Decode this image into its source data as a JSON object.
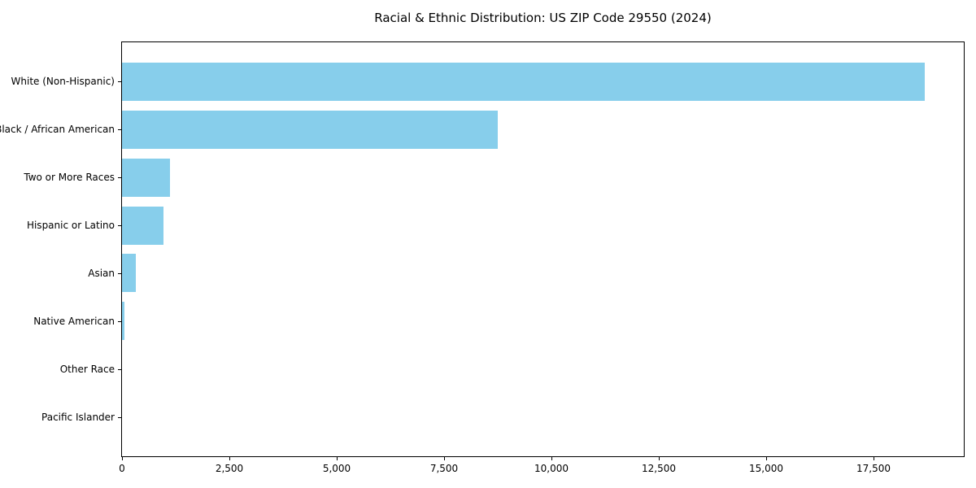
{
  "chart_data": {
    "type": "bar",
    "orientation": "horizontal",
    "title": "Racial & Ethnic Distribution: US ZIP Code 29550 (2024)",
    "categories": [
      "White (Non-Hispanic)",
      "Black / African American",
      "Two or More Races",
      "Hispanic or Latino",
      "Asian",
      "Native American",
      "Other Race",
      "Pacific Islander"
    ],
    "values": [
      18700,
      8750,
      1120,
      975,
      330,
      50,
      0,
      0
    ],
    "xlabel": "",
    "ylabel": "",
    "xlim": [
      0,
      19600
    ],
    "xticks": [
      0,
      2500,
      5000,
      7500,
      10000,
      12500,
      15000,
      17500
    ],
    "xtick_labels": [
      "0",
      "2,500",
      "5,000",
      "7,500",
      "10,000",
      "12,500",
      "15,000",
      "17,500"
    ],
    "bar_color": "#87CEEB",
    "background_color": "#ffffff",
    "spine_color": "#000000",
    "grid": false,
    "legend": null
  }
}
